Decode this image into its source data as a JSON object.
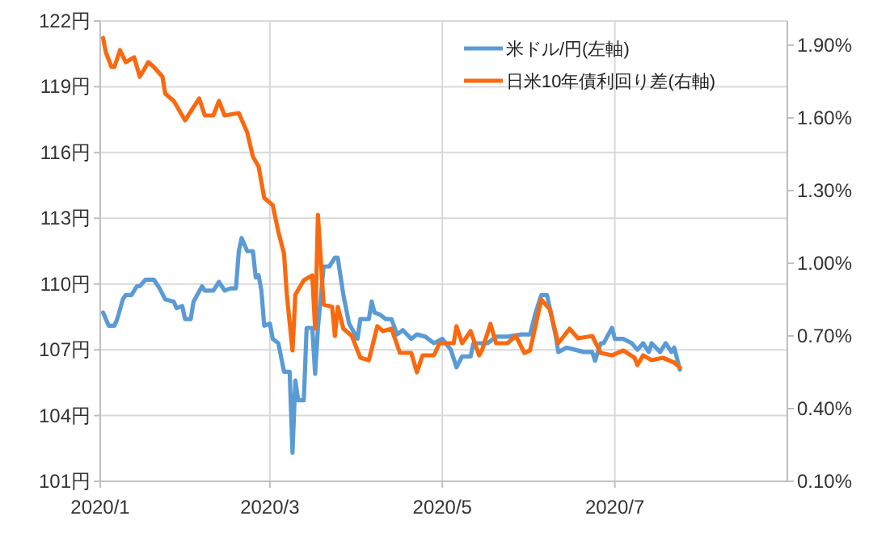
{
  "chart_data": {
    "type": "line",
    "xlim": [
      "2020-01-01",
      "2020-08-31"
    ],
    "xticks": [
      {
        "value": "2020-01-01",
        "label": "2020/1"
      },
      {
        "value": "2020-03-01",
        "label": "2020/3"
      },
      {
        "value": "2020-05-01",
        "label": "2020/5"
      },
      {
        "value": "2020-07-01",
        "label": "2020/7"
      }
    ],
    "ylim": [
      101,
      122
    ],
    "yticks": [
      {
        "value": 101,
        "label": "101円"
      },
      {
        "value": 104,
        "label": "104円"
      },
      {
        "value": 107,
        "label": "107円"
      },
      {
        "value": 110,
        "label": "110円"
      },
      {
        "value": 113,
        "label": "113円"
      },
      {
        "value": 116,
        "label": "116円"
      },
      {
        "value": 119,
        "label": "119円"
      },
      {
        "value": 122,
        "label": "122円"
      }
    ],
    "y2lim": [
      0.1,
      2.0
    ],
    "y2ticks": [
      {
        "value": 0.1,
        "label": "0.10%"
      },
      {
        "value": 0.4,
        "label": "0.40%"
      },
      {
        "value": 0.7,
        "label": "0.70%"
      },
      {
        "value": 1.0,
        "label": "1.00%"
      },
      {
        "value": 1.3,
        "label": "1.30%"
      },
      {
        "value": 1.6,
        "label": "1.60%"
      },
      {
        "value": 1.9,
        "label": "1.90%"
      }
    ],
    "grid": true,
    "legend": "top right",
    "marker": "none",
    "line_style": "solid",
    "series": [
      {
        "name": "米ドル/円(左軸)",
        "color": "#5b9bd5",
        "x": [
          "2020-01-02",
          "2020-01-03",
          "2020-01-04",
          "2020-01-06",
          "2020-01-07",
          "2020-01-09",
          "2020-01-10",
          "2020-01-12",
          "2020-01-14",
          "2020-01-15",
          "2020-01-17",
          "2020-01-20",
          "2020-01-22",
          "2020-01-24",
          "2020-01-27",
          "2020-01-28",
          "2020-01-30",
          "2020-01-31",
          "2020-02-02",
          "2020-02-03",
          "2020-02-06",
          "2020-02-07",
          "2020-02-10",
          "2020-02-12",
          "2020-02-14",
          "2020-02-16",
          "2020-02-18",
          "2020-02-19",
          "2020-02-20",
          "2020-02-22",
          "2020-02-24",
          "2020-02-25",
          "2020-02-26",
          "2020-02-27",
          "2020-02-28",
          "2020-03-01",
          "2020-03-02",
          "2020-03-04",
          "2020-03-06",
          "2020-03-08",
          "2020-03-09",
          "2020-03-10",
          "2020-03-11",
          "2020-03-13",
          "2020-03-14",
          "2020-03-16",
          "2020-03-17",
          "2020-03-18",
          "2020-03-20",
          "2020-03-22",
          "2020-03-24",
          "2020-03-25",
          "2020-03-27",
          "2020-03-29",
          "2020-04-01",
          "2020-04-02",
          "2020-04-05",
          "2020-04-06",
          "2020-04-07",
          "2020-04-09",
          "2020-04-11",
          "2020-04-13",
          "2020-04-15",
          "2020-04-17",
          "2020-04-20",
          "2020-04-22",
          "2020-04-25",
          "2020-04-28",
          "2020-05-01",
          "2020-05-04",
          "2020-05-06",
          "2020-05-08",
          "2020-05-11",
          "2020-05-12",
          "2020-05-15",
          "2020-05-17",
          "2020-05-20",
          "2020-05-24",
          "2020-05-29",
          "2020-06-01",
          "2020-06-03",
          "2020-06-05",
          "2020-06-07",
          "2020-06-10",
          "2020-06-11",
          "2020-06-14",
          "2020-06-17",
          "2020-06-20",
          "2020-06-23",
          "2020-06-24",
          "2020-06-26",
          "2020-06-27",
          "2020-06-30",
          "2020-07-01",
          "2020-07-04",
          "2020-07-07",
          "2020-07-09",
          "2020-07-11",
          "2020-07-13",
          "2020-07-14",
          "2020-07-17",
          "2020-07-19",
          "2020-07-21",
          "2020-07-22",
          "2020-07-24"
        ],
        "values": [
          108.7,
          108.4,
          108.1,
          108.1,
          108.4,
          109.3,
          109.5,
          109.5,
          109.9,
          109.9,
          110.2,
          110.2,
          109.8,
          109.3,
          109.2,
          108.9,
          109.0,
          108.4,
          108.4,
          109.2,
          109.9,
          109.7,
          109.7,
          110.1,
          109.7,
          109.8,
          109.8,
          111.5,
          112.1,
          111.5,
          111.5,
          110.3,
          110.4,
          109.7,
          108.1,
          108.2,
          107.5,
          107.3,
          106.0,
          106.0,
          102.3,
          105.6,
          104.7,
          104.7,
          108.0,
          108.0,
          105.9,
          108.0,
          110.8,
          110.8,
          111.2,
          111.2,
          109.5,
          108.2,
          107.5,
          108.4,
          108.4,
          109.2,
          108.7,
          108.6,
          108.4,
          108.4,
          107.7,
          107.9,
          107.5,
          107.7,
          107.6,
          107.3,
          107.5,
          107.0,
          106.2,
          106.7,
          106.7,
          107.3,
          107.3,
          107.3,
          107.6,
          107.6,
          107.7,
          107.7,
          108.7,
          109.5,
          109.5,
          107.7,
          106.9,
          107.1,
          107.0,
          106.9,
          106.9,
          106.5,
          107.3,
          107.3,
          108.0,
          107.5,
          107.5,
          107.3,
          107.0,
          107.3,
          106.9,
          107.3,
          106.9,
          107.3,
          106.9,
          107.1,
          106.1
        ]
      },
      {
        "name": "日米10年債利回り差(右軸)",
        "color": "#f96a10",
        "axis": "y2",
        "x": [
          "2020-01-02",
          "2020-01-03",
          "2020-01-05",
          "2020-01-06",
          "2020-01-08",
          "2020-01-10",
          "2020-01-13",
          "2020-01-15",
          "2020-01-18",
          "2020-01-20",
          "2020-01-23",
          "2020-01-24",
          "2020-01-27",
          "2020-01-29",
          "2020-01-31",
          "2020-02-05",
          "2020-02-07",
          "2020-02-10",
          "2020-02-12",
          "2020-02-14",
          "2020-02-19",
          "2020-02-22",
          "2020-02-24",
          "2020-02-26",
          "2020-02-28",
          "2020-03-02",
          "2020-03-04",
          "2020-03-06",
          "2020-03-07",
          "2020-03-09",
          "2020-03-10",
          "2020-03-13",
          "2020-03-16",
          "2020-03-17",
          "2020-03-18",
          "2020-03-20",
          "2020-03-23",
          "2020-03-24",
          "2020-03-25",
          "2020-03-27",
          "2020-03-30",
          "2020-04-02",
          "2020-04-05",
          "2020-04-08",
          "2020-04-10",
          "2020-04-13",
          "2020-04-16",
          "2020-04-20",
          "2020-04-22",
          "2020-04-24",
          "2020-04-28",
          "2020-04-30",
          "2020-05-05",
          "2020-05-06",
          "2020-05-08",
          "2020-05-11",
          "2020-05-14",
          "2020-05-15",
          "2020-05-18",
          "2020-05-20",
          "2020-05-24",
          "2020-05-27",
          "2020-05-30",
          "2020-06-01",
          "2020-06-05",
          "2020-06-08",
          "2020-06-11",
          "2020-06-15",
          "2020-06-18",
          "2020-06-23",
          "2020-06-26",
          "2020-06-30",
          "2020-07-04",
          "2020-07-08",
          "2020-07-09",
          "2020-07-11",
          "2020-07-14",
          "2020-07-18",
          "2020-07-22",
          "2020-07-24"
        ],
        "values": [
          1.93,
          1.87,
          1.81,
          1.81,
          1.88,
          1.83,
          1.85,
          1.77,
          1.83,
          1.81,
          1.77,
          1.7,
          1.67,
          1.63,
          1.59,
          1.68,
          1.61,
          1.61,
          1.67,
          1.61,
          1.62,
          1.54,
          1.44,
          1.4,
          1.27,
          1.24,
          1.13,
          1.04,
          0.87,
          0.64,
          0.87,
          0.93,
          0.95,
          0.73,
          1.2,
          0.83,
          0.82,
          0.7,
          0.82,
          0.73,
          0.7,
          0.61,
          0.6,
          0.74,
          0.72,
          0.73,
          0.63,
          0.63,
          0.55,
          0.62,
          0.62,
          0.67,
          0.67,
          0.74,
          0.67,
          0.72,
          0.62,
          0.64,
          0.75,
          0.67,
          0.67,
          0.7,
          0.63,
          0.64,
          0.85,
          0.81,
          0.67,
          0.73,
          0.69,
          0.7,
          0.63,
          0.62,
          0.64,
          0.61,
          0.58,
          0.62,
          0.6,
          0.61,
          0.59,
          0.57
        ]
      }
    ]
  }
}
